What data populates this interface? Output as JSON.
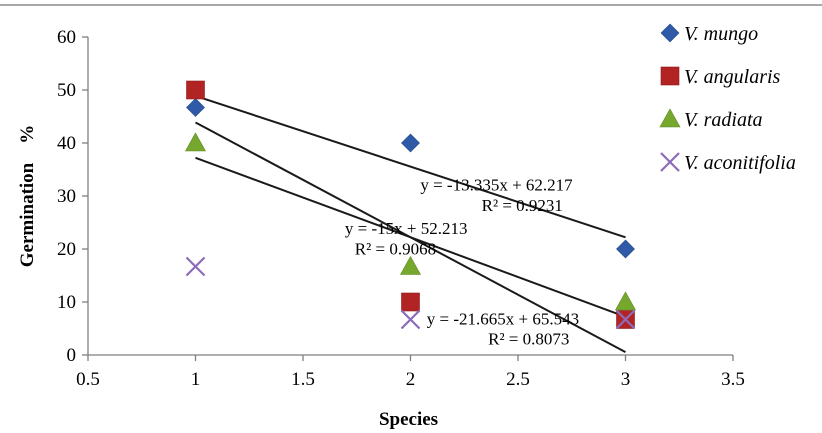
{
  "chart_data": {
    "type": "scatter",
    "xlabel": "Species",
    "ylabel": "Germination    %",
    "xlim": [
      0.5,
      3.5
    ],
    "ylim": [
      0,
      60
    ],
    "x_ticks": [
      "0.5",
      "1",
      "1.5",
      "2",
      "2.5",
      "3",
      "3.5"
    ],
    "y_ticks": [
      "0",
      "10",
      "20",
      "30",
      "40",
      "50",
      "60"
    ],
    "grid": false,
    "legend_position": "right",
    "series": [
      {
        "name": "V. mungo",
        "marker": "diamond",
        "color": "#2f5aa8",
        "x": [
          1,
          2,
          3
        ],
        "y": [
          46.7,
          40,
          20
        ]
      },
      {
        "name": "V. angularis",
        "marker": "square",
        "color": "#b22424",
        "x": [
          1,
          2,
          3
        ],
        "y": [
          50,
          10,
          6.7
        ]
      },
      {
        "name": "V. radiata",
        "marker": "triangle",
        "color": "#77a82e",
        "x": [
          1,
          2,
          3
        ],
        "y": [
          40,
          16.7,
          10
        ]
      },
      {
        "name": "V. aconitifolia",
        "marker": "cross",
        "color": "#8c6cb8",
        "x": [
          1,
          2,
          3
        ],
        "y": [
          16.7,
          6.7,
          6.7
        ]
      }
    ],
    "trendlines": [
      {
        "slope": -13.335,
        "intercept": 62.217,
        "x_range": [
          1,
          3
        ]
      },
      {
        "slope": -21.665,
        "intercept": 65.543,
        "x_range": [
          1,
          3
        ]
      },
      {
        "slope": -15,
        "intercept": 52.213,
        "x_range": [
          1,
          3
        ]
      }
    ],
    "annotations": [
      {
        "text": "y = -13.335x + 62.217",
        "x": 2.4,
        "y": 31
      },
      {
        "text": "R² = 0.9231",
        "x": 2.52,
        "y": 27.2
      },
      {
        "text": "y = -15x + 52.213",
        "x": 1.98,
        "y": 22.8
      },
      {
        "text": "R² = 0.9068",
        "x": 1.93,
        "y": 19
      },
      {
        "text": "y = -21.665x + 65.543",
        "x": 2.43,
        "y": 5.8
      },
      {
        "text": "R² = 0.8073",
        "x": 2.55,
        "y": 2
      }
    ]
  }
}
